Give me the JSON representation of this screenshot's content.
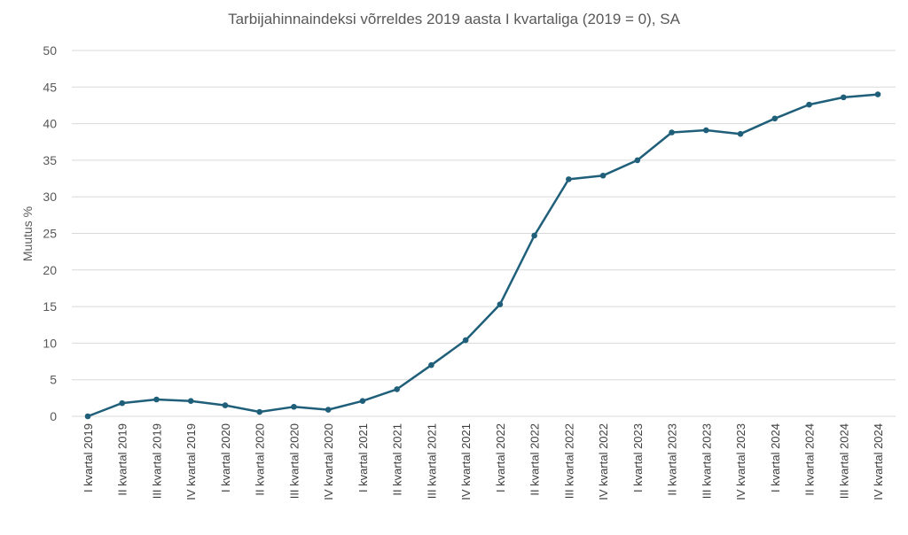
{
  "chart_data": {
    "type": "line",
    "title": "Tarbijahinnaindeksi võrreldes 2019 aasta I kvartaliga (2019 = 0), SA",
    "xlabel": "",
    "ylabel": "Muutus %",
    "ylim": [
      0,
      50
    ],
    "yticks": [
      "0",
      "5",
      "10",
      "15",
      "20",
      "25",
      "30",
      "35",
      "40",
      "45",
      "50"
    ],
    "grid": true,
    "legend": "none",
    "line_color": "#1f5f7a",
    "marker_color": "#1f5f7a",
    "grid_color": "#d9d9d9",
    "categories": [
      "I kvartal 2019",
      "II kvartal 2019",
      "III kvartal 2019",
      "IV kvartal 2019",
      "I kvartal 2020",
      "II kvartal 2020",
      "III kvartal 2020",
      "IV kvartal 2020",
      "I kvartal 2021",
      "II kvartal 2021",
      "III kvartal 2021",
      "IV kvartal 2021",
      "I kvartal 2022",
      "II kvartal 2022",
      "III kvartal 2022",
      "IV kvartal 2022",
      "I kvartal 2023",
      "II kvartal 2023",
      "III kvartal 2023",
      "IV kvartal 2023",
      "I kvartal 2024",
      "II kvartal 2024",
      "III kvartal 2024",
      "IV kvartal 2024"
    ],
    "series": [
      {
        "values": [
          0,
          1.8,
          2.3,
          2.1,
          1.5,
          0.6,
          1.3,
          0.9,
          2.1,
          3.7,
          7.0,
          10.4,
          15.3,
          24.7,
          32.4,
          32.9,
          35.0,
          38.8,
          39.1,
          38.6,
          40.7,
          42.6,
          43.6,
          44.0
        ]
      }
    ]
  }
}
